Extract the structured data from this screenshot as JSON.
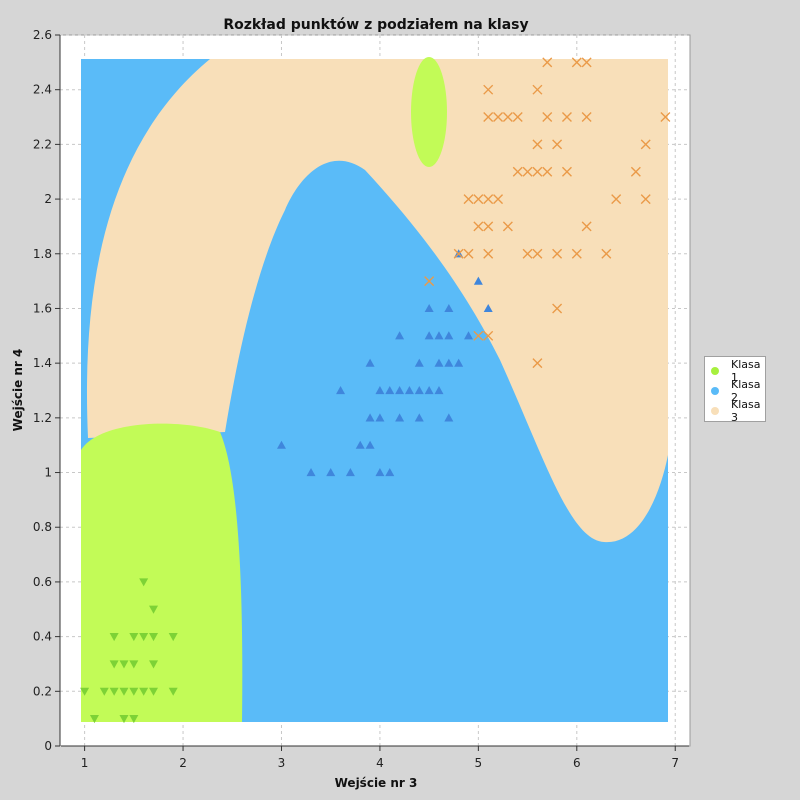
{
  "chart_data": {
    "type": "scatter",
    "title": "Rozkład punktów z podziałem na klasy",
    "xlabel": "Wejście nr 3",
    "ylabel": "Wejście nr 4",
    "xlim": [
      0.75,
      7.15
    ],
    "ylim": [
      0,
      2.6
    ],
    "x_ticks": [
      1,
      2,
      3,
      4,
      5,
      6,
      7
    ],
    "y_ticks": [
      0,
      0.2,
      0.4,
      0.6,
      0.8,
      1,
      1.2,
      1.4,
      1.6,
      1.8,
      2,
      2.2,
      2.4,
      2.6
    ],
    "legend_position": "right",
    "series": [
      {
        "name": "Klasa 1",
        "color": "#c2fb57",
        "marker_color": "#7dd236",
        "marker": "triangle-down",
        "points": [
          [
            1,
            0.2
          ],
          [
            1.1,
            0.1
          ],
          [
            1.2,
            0.2
          ],
          [
            1.3,
            0.2
          ],
          [
            1.3,
            0.3
          ],
          [
            1.3,
            0.4
          ],
          [
            1.4,
            0.1
          ],
          [
            1.4,
            0.2
          ],
          [
            1.4,
            0.3
          ],
          [
            1.5,
            0.1
          ],
          [
            1.5,
            0.2
          ],
          [
            1.5,
            0.3
          ],
          [
            1.5,
            0.4
          ],
          [
            1.6,
            0.2
          ],
          [
            1.6,
            0.4
          ],
          [
            1.6,
            0.6
          ],
          [
            1.7,
            0.2
          ],
          [
            1.7,
            0.3
          ],
          [
            1.7,
            0.4
          ],
          [
            1.7,
            0.5
          ],
          [
            1.9,
            0.2
          ],
          [
            1.9,
            0.4
          ]
        ]
      },
      {
        "name": "Klasa 2",
        "color": "#5abbf8",
        "marker_color": "#3f86dc",
        "marker": "triangle-up",
        "points": [
          [
            3,
            1.1
          ],
          [
            3.3,
            1
          ],
          [
            3.5,
            1
          ],
          [
            3.6,
            1.3
          ],
          [
            3.7,
            1
          ],
          [
            3.8,
            1.1
          ],
          [
            3.9,
            1.1
          ],
          [
            3.9,
            1.2
          ],
          [
            3.9,
            1.4
          ],
          [
            4,
            1
          ],
          [
            4,
            1.2
          ],
          [
            4,
            1.3
          ],
          [
            4.1,
            1
          ],
          [
            4.1,
            1.3
          ],
          [
            4.2,
            1.2
          ],
          [
            4.2,
            1.3
          ],
          [
            4.2,
            1.5
          ],
          [
            4.3,
            1.3
          ],
          [
            4.4,
            1.2
          ],
          [
            4.4,
            1.3
          ],
          [
            4.4,
            1.4
          ],
          [
            4.5,
            1.3
          ],
          [
            4.5,
            1.5
          ],
          [
            4.5,
            1.6
          ],
          [
            4.6,
            1.3
          ],
          [
            4.6,
            1.4
          ],
          [
            4.6,
            1.5
          ],
          [
            4.7,
            1.2
          ],
          [
            4.7,
            1.4
          ],
          [
            4.7,
            1.5
          ],
          [
            4.7,
            1.6
          ],
          [
            4.8,
            1.4
          ],
          [
            4.8,
            1.8
          ],
          [
            4.9,
            1.5
          ],
          [
            5,
            1.7
          ],
          [
            5.1,
            1.6
          ]
        ]
      },
      {
        "name": "Klasa 3",
        "color": "#f8dfb9",
        "marker_color": "#ea9a48",
        "marker": "cross",
        "points": [
          [
            4.5,
            1.7
          ],
          [
            4.8,
            1.8
          ],
          [
            4.9,
            1.8
          ],
          [
            4.9,
            2
          ],
          [
            5,
            1.5
          ],
          [
            5,
            1.9
          ],
          [
            5,
            2
          ],
          [
            5.1,
            1.5
          ],
          [
            5.1,
            1.8
          ],
          [
            5.1,
            1.9
          ],
          [
            5.1,
            2
          ],
          [
            5.1,
            2.3
          ],
          [
            5.1,
            2.4
          ],
          [
            5.2,
            2
          ],
          [
            5.2,
            2.3
          ],
          [
            5.3,
            1.9
          ],
          [
            5.3,
            2.3
          ],
          [
            5.4,
            2.1
          ],
          [
            5.4,
            2.3
          ],
          [
            5.5,
            1.8
          ],
          [
            5.5,
            2.1
          ],
          [
            5.6,
            1.4
          ],
          [
            5.6,
            1.8
          ],
          [
            5.6,
            2.1
          ],
          [
            5.6,
            2.2
          ],
          [
            5.6,
            2.4
          ],
          [
            5.7,
            2.1
          ],
          [
            5.7,
            2.3
          ],
          [
            5.7,
            2.5
          ],
          [
            5.8,
            1.6
          ],
          [
            5.8,
            1.8
          ],
          [
            5.8,
            2.2
          ],
          [
            5.9,
            2.1
          ],
          [
            5.9,
            2.3
          ],
          [
            6,
            1.8
          ],
          [
            6,
            2.5
          ],
          [
            6.1,
            1.9
          ],
          [
            6.1,
            2.3
          ],
          [
            6.1,
            2.5
          ],
          [
            6.3,
            1.8
          ],
          [
            6.4,
            2
          ],
          [
            6.6,
            2.1
          ],
          [
            6.7,
            2
          ],
          [
            6.7,
            2.2
          ],
          [
            6.9,
            2.3
          ]
        ]
      }
    ],
    "regions_color_key": {
      "Klasa 1": "#c2fb57",
      "Klasa 2": "#5abbf8",
      "Klasa 3": "#f8dfb9"
    }
  }
}
